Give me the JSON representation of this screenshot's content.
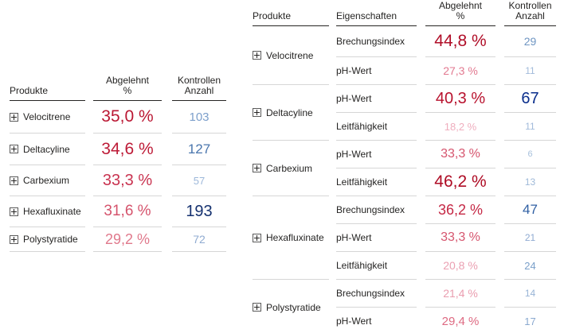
{
  "icons": {
    "expand": "plus-box-icon"
  },
  "style_colors": {
    "header_text": "#252423",
    "label_text": "#252423",
    "header_underline": "#252423",
    "row_separator": "#D6D6D6",
    "background": "#FFFFFF"
  },
  "left_table": {
    "header": {
      "produkte": "Produkte",
      "abgelehnt_line1": "Abgelehnt",
      "abgelehnt_line2": "%",
      "kontrollen_line1": "Kontrollen",
      "kontrollen_line2": "Anzahl"
    },
    "rows": [
      {
        "product": "Velocitrene",
        "pct": "35,0 %",
        "pct_color": "#BA1733",
        "pct_size": 21,
        "count": "103",
        "count_color": "#7C9FCB",
        "count_size": 15
      },
      {
        "product": "Deltacyline",
        "pct": "34,6 %",
        "pct_color": "#BD1B37",
        "pct_size": 21,
        "count": "127",
        "count_color": "#4A76AD",
        "count_size": 17
      },
      {
        "product": "Carbexium",
        "pct": "33,3 %",
        "pct_color": "#C93350",
        "pct_size": 20,
        "count": "57",
        "count_color": "#9DB8DA",
        "count_size": 13
      },
      {
        "product": "Hexafluxinate",
        "pct": "31,6 %",
        "pct_color": "#D5536C",
        "pct_size": 19,
        "count": "193",
        "count_color": "#15316F",
        "count_size": 20
      },
      {
        "product": "Polystyratide",
        "pct": "29,2 %",
        "pct_color": "#E0798C",
        "pct_size": 18,
        "count": "72",
        "count_color": "#90ABD1",
        "count_size": 14
      }
    ]
  },
  "right_table": {
    "header": {
      "produkte": "Produkte",
      "eigenschaften": "Eigenschaften",
      "abgelehnt_line1": "Abgelehnt",
      "abgelehnt_line2": "%",
      "kontrollen_line1": "Kontrollen",
      "kontrollen_line2": "Anzahl"
    },
    "groups": [
      {
        "product": "Velocitrene",
        "rows": [
          {
            "eigenschaft": "Brechungsindex",
            "pct": "44,8 %",
            "pct_color": "#B00D27",
            "pct_size": 21,
            "count": "29",
            "count_color": "#6E95C2",
            "count_size": 14
          },
          {
            "eigenschaft": "pH-Wert",
            "pct": "27,3 %",
            "pct_color": "#E27990",
            "pct_size": 14,
            "count": "11",
            "count_color": "#A2BBDB",
            "count_size": 12
          }
        ]
      },
      {
        "product": "Deltacyline",
        "rows": [
          {
            "eigenschaft": "pH-Wert",
            "pct": "40,3 %",
            "pct_color": "#B8122E",
            "pct_size": 20,
            "count": "67",
            "count_color": "#0A2E8C",
            "count_size": 20
          },
          {
            "eigenschaft": "Leitfähigkeit",
            "pct": "18,2 %",
            "pct_color": "#EFAEBE",
            "pct_size": 13,
            "count": "11",
            "count_color": "#A2BBDB",
            "count_size": 12
          }
        ]
      },
      {
        "product": "Carbexium",
        "rows": [
          {
            "eigenschaft": "pH-Wert",
            "pct": "33,3 %",
            "pct_color": "#D6556E",
            "pct_size": 16,
            "count": "6",
            "count_color": "#A8C0DC",
            "count_size": 11
          },
          {
            "eigenschaft": "Leitfähigkeit",
            "pct": "46,2 %",
            "pct_color": "#AE0B24",
            "pct_size": 21,
            "count": "13",
            "count_color": "#9FB9D8",
            "count_size": 12
          }
        ]
      },
      {
        "product": "Hexafluxinate",
        "rows": [
          {
            "eigenschaft": "Brechungsindex",
            "pct": "36,2 %",
            "pct_color": "#C52845",
            "pct_size": 18,
            "count": "47",
            "count_color": "#2F5FA3",
            "count_size": 17
          },
          {
            "eigenschaft": "pH-Wert",
            "pct": "33,3 %",
            "pct_color": "#D6556E",
            "pct_size": 16,
            "count": "21",
            "count_color": "#8FAAD2",
            "count_size": 12
          },
          {
            "eigenschaft": "Leitfähigkeit",
            "pct": "20,8 %",
            "pct_color": "#EBA0B2",
            "pct_size": 14,
            "count": "24",
            "count_color": "#7BA0CA",
            "count_size": 13
          }
        ]
      },
      {
        "product": "Polystyratide",
        "rows": [
          {
            "eigenschaft": "Brechungsindex",
            "pct": "21,4 %",
            "pct_color": "#EA9DAF",
            "pct_size": 14,
            "count": "14",
            "count_color": "#98B4D6",
            "count_size": 12
          },
          {
            "eigenschaft": "pH-Wert",
            "pct": "29,4 %",
            "pct_color": "#DE6A82",
            "pct_size": 15,
            "count": "17",
            "count_color": "#8AA9D0",
            "count_size": 13
          }
        ]
      }
    ]
  }
}
